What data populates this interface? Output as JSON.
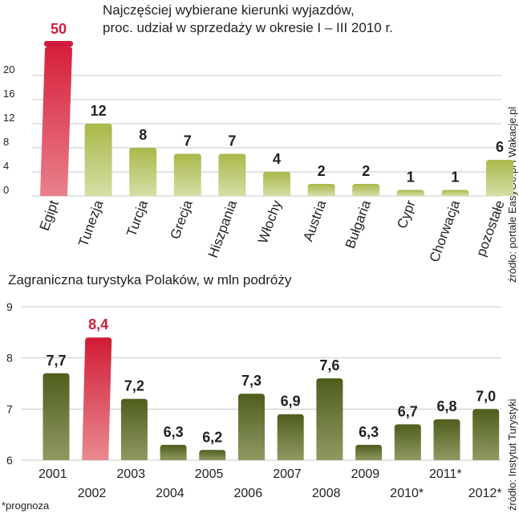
{
  "titles": {
    "chart1_line1": "Najczęściej wybierane kierunki wyjazdów,",
    "chart1_line2": "proc. udział w sprzedaży w okresie I – III 2010 r.",
    "chart2": "Zagraniczna turystyka Polaków, w mln podróży"
  },
  "sources": {
    "chart1": "źródło: portale EasyGo.pl i Wakacje.pl",
    "chart2": "źródło: Instytut Turystyki"
  },
  "footnote": "*prognoza",
  "colors": {
    "highlight": "#d9283f",
    "green_light": "#b5c35a",
    "green_dark": "#5d6b25",
    "grid": "#c8c8c8"
  },
  "chart_data": [
    {
      "type": "bar",
      "title": "Najczęściej wybierane kierunki wyjazdów, proc. udział w sprzedaży w okresie I – III 2010 r.",
      "categories": [
        "Egipt",
        "Tunezja",
        "Turcja",
        "Grecja",
        "Hiszpania",
        "Włochy",
        "Austria",
        "Bułgaria",
        "Cypr",
        "Chorwacja",
        "pozostałe"
      ],
      "values": [
        50,
        12,
        8,
        7,
        7,
        4,
        2,
        2,
        1,
        1,
        6
      ],
      "value_labels": [
        "50",
        "12",
        "8",
        "7",
        "7",
        "4",
        "2",
        "2",
        "1",
        "1",
        "6"
      ],
      "yticks": [
        "0",
        "4",
        "8",
        "12",
        "16",
        "20"
      ],
      "ylim": [
        0,
        20
      ],
      "highlight_index": 0,
      "grid": true
    },
    {
      "type": "bar",
      "title": "Zagraniczna turystyka Polaków, w mln podróży",
      "categories": [
        "2001",
        "2002",
        "2003",
        "2004",
        "2005",
        "2006",
        "2007",
        "2008",
        "2009",
        "2010*",
        "2011*",
        "2012*"
      ],
      "values": [
        7.7,
        8.4,
        7.2,
        6.3,
        6.2,
        7.3,
        6.9,
        7.6,
        6.3,
        6.7,
        6.8,
        7.0
      ],
      "value_labels": [
        "7,7",
        "8,4",
        "7,2",
        "6,3",
        "6,2",
        "7,3",
        "6,9",
        "7,6",
        "6,3",
        "6,7",
        "6,8",
        "7,0"
      ],
      "yticks": [
        "6",
        "7",
        "8",
        "9"
      ],
      "ylim": [
        6,
        9
      ],
      "highlight_index": 1,
      "grid": true
    }
  ]
}
